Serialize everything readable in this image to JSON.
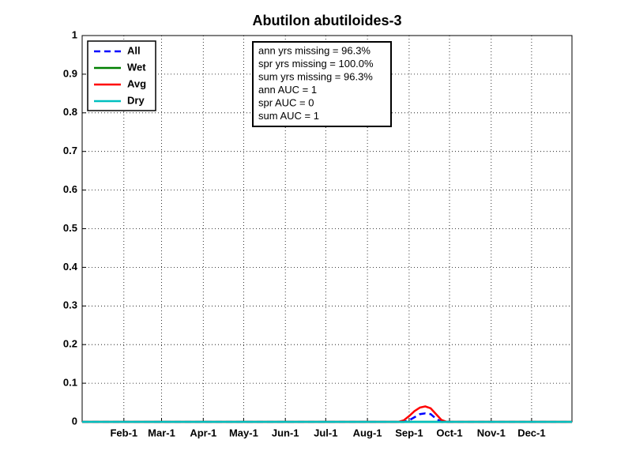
{
  "chart_data": {
    "type": "line",
    "title": "Abutilon abutiloides-3",
    "x": [
      1,
      236,
      240,
      244,
      248,
      252,
      256,
      260,
      264,
      268,
      272,
      365
    ],
    "series": [
      {
        "name": "All",
        "color": "#0000ff",
        "dash": true,
        "values": [
          0,
          0,
          0,
          0.004,
          0.012,
          0.02,
          0.022,
          0.02,
          0.008,
          0,
          0,
          0
        ]
      },
      {
        "name": "Wet",
        "color": "#008000",
        "values": [
          0,
          0,
          0,
          0,
          0,
          0,
          0,
          0,
          0,
          0,
          0,
          0
        ]
      },
      {
        "name": "Avg",
        "color": "#ff0000",
        "values": [
          0,
          0,
          0.004,
          0.015,
          0.028,
          0.037,
          0.04,
          0.035,
          0.02,
          0.005,
          0,
          0
        ]
      },
      {
        "name": "Dry",
        "color": "#00bfbf",
        "values": [
          0,
          0,
          0,
          0,
          0,
          0,
          0,
          0,
          0,
          0,
          0,
          0
        ]
      }
    ],
    "xlim": [
      1,
      365
    ],
    "xticks": [
      {
        "value": 32,
        "label": "Feb-1"
      },
      {
        "value": 60,
        "label": "Mar-1"
      },
      {
        "value": 91,
        "label": "Apr-1"
      },
      {
        "value": 121,
        "label": "May-1"
      },
      {
        "value": 152,
        "label": "Jun-1"
      },
      {
        "value": 182,
        "label": "Jul-1"
      },
      {
        "value": 213,
        "label": "Aug-1"
      },
      {
        "value": 244,
        "label": "Sep-1"
      },
      {
        "value": 274,
        "label": "Oct-1"
      },
      {
        "value": 305,
        "label": "Nov-1"
      },
      {
        "value": 335,
        "label": "Dec-1"
      }
    ],
    "ylim": [
      0,
      1
    ],
    "yticks": [
      0,
      0.1,
      0.2,
      0.3,
      0.4,
      0.5,
      0.6,
      0.7,
      0.8,
      0.9,
      1
    ],
    "grid": true,
    "legend": "northwest",
    "annotations": [
      "ann yrs missing = 96.3%",
      "spr yrs missing = 100.0%",
      "sum yrs missing = 96.3%",
      "ann AUC = 1",
      "spr AUC = 0",
      "sum AUC = 1"
    ]
  }
}
